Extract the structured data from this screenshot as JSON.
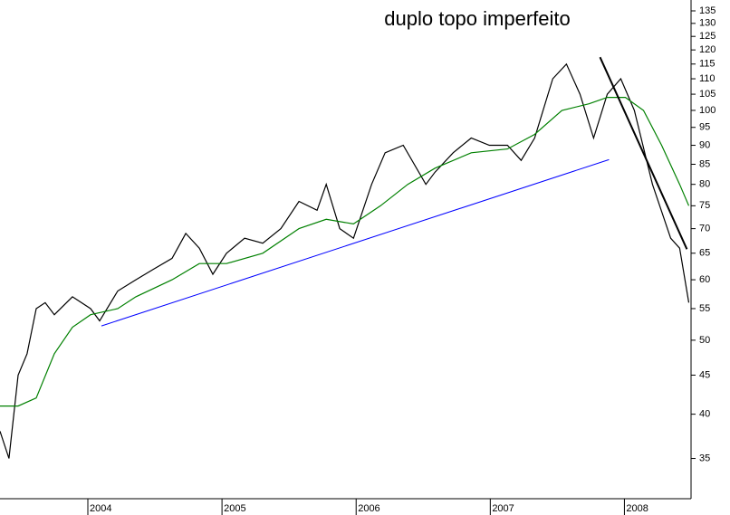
{
  "chart_data": {
    "type": "line",
    "title": "duplo topo imperfeito",
    "log_y": true,
    "xlim": [
      2003.345,
      2008.49
    ],
    "xticks": [
      2004,
      2005,
      2006,
      2007,
      2008
    ],
    "ylim": [
      31,
      139.5
    ],
    "yticks": [
      35,
      40,
      45,
      50,
      55,
      60,
      65,
      70,
      75,
      80,
      85,
      90,
      95,
      100,
      105,
      110,
      115,
      120,
      125,
      130,
      135
    ],
    "series": [
      {
        "color": "#000000",
        "x": [
          2003.345,
          2003.412,
          2003.48,
          2003.547,
          2003.615,
          2003.682,
          2003.75,
          2003.885,
          2004.02,
          2004.088,
          2004.223,
          2004.358,
          2004.493,
          2004.628,
          2004.73,
          2004.831,
          2004.932,
          2005.034,
          2005.169,
          2005.304,
          2005.439,
          2005.574,
          2005.709,
          2005.777,
          2005.878,
          2005.98,
          2006.115,
          2006.216,
          2006.351,
          2006.52,
          2006.588,
          2006.723,
          2006.858,
          2006.993,
          2007.128,
          2007.23,
          2007.331,
          2007.466,
          2007.568,
          2007.669,
          2007.77,
          2007.872,
          2007.973,
          2008.074,
          2008.209,
          2008.345,
          2008.412,
          2008.48
        ],
        "values": [
          38,
          35,
          45,
          48,
          55,
          56,
          54,
          57,
          55,
          53,
          58,
          60,
          62,
          64,
          69,
          66,
          61,
          65,
          68,
          67,
          70,
          76,
          74,
          80,
          70,
          68,
          80,
          88,
          90,
          80,
          83,
          88,
          92,
          90,
          90,
          86,
          92,
          110,
          115,
          105,
          92,
          105,
          110,
          100,
          80,
          68,
          66,
          56
        ]
      },
      {
        "color": "#008000",
        "x": [
          2003.345,
          2003.48,
          2003.615,
          2003.75,
          2003.885,
          2004.02,
          2004.223,
          2004.358,
          2004.628,
          2004.831,
          2005.034,
          2005.304,
          2005.574,
          2005.777,
          2005.98,
          2006.182,
          2006.385,
          2006.588,
          2006.858,
          2007.128,
          2007.331,
          2007.534,
          2007.736,
          2007.872,
          2008.007,
          2008.142,
          2008.277,
          2008.412,
          2008.48
        ],
        "values": [
          41,
          41,
          42,
          48,
          52,
          54,
          55,
          57,
          60,
          63,
          63,
          65,
          70,
          72,
          71,
          75,
          80,
          84,
          88,
          89,
          93,
          100,
          102,
          104,
          104,
          100,
          90,
          80,
          75
        ]
      }
    ],
    "trendlines": [
      {
        "color": "#0000ff",
        "x": [
          2004.101,
          2007.885
        ],
        "values": [
          52.2,
          86.2
        ]
      },
      {
        "color": "#000000",
        "x": [
          2007.818,
          2008.466
        ],
        "values": [
          117.4,
          65.8
        ]
      }
    ]
  }
}
